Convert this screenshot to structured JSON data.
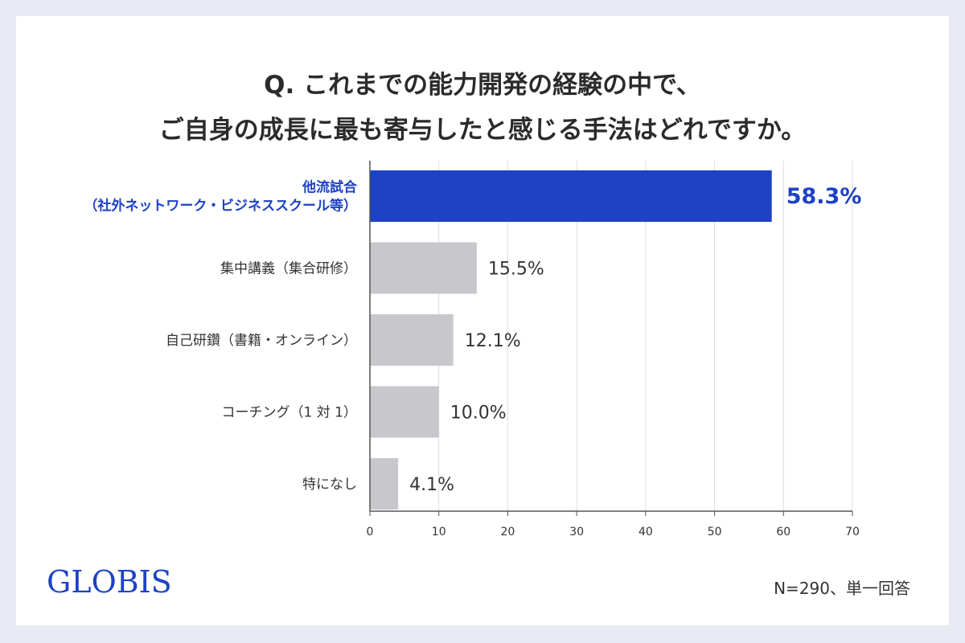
{
  "title": {
    "line1": "Q. これまでの能力開発の経験の中で、",
    "line2": "ご自身の成長に最も寄与したと感じる手法はどれですか。"
  },
  "brand": {
    "logo_text": "GLOBIS",
    "color": "#1d42c6"
  },
  "note": "N=290、単一回答",
  "chart_data": {
    "type": "bar",
    "orientation": "horizontal",
    "categories": [
      [
        "他流試合",
        "（社外ネットワーク・ビジネススクール等）"
      ],
      [
        "集中講義（集合研修）"
      ],
      [
        "自己研鑽（書籍・オンライン）"
      ],
      [
        "コーチング（1 対 1）"
      ],
      [
        "特になし"
      ]
    ],
    "values": [
      58.3,
      15.5,
      12.1,
      10.0,
      4.1
    ],
    "value_labels": [
      "58.3%",
      "15.5%",
      "12.1%",
      "10.0%",
      "4.1%"
    ],
    "highlight_index": 0,
    "colors": {
      "highlight": "#1d42c6",
      "default": "#c8c8cc",
      "grid": "#dddddd",
      "axis": "#555555"
    },
    "xlim": [
      0,
      70
    ],
    "xticks": [
      0,
      10,
      20,
      30,
      40,
      50,
      60,
      70
    ],
    "grid": true
  }
}
